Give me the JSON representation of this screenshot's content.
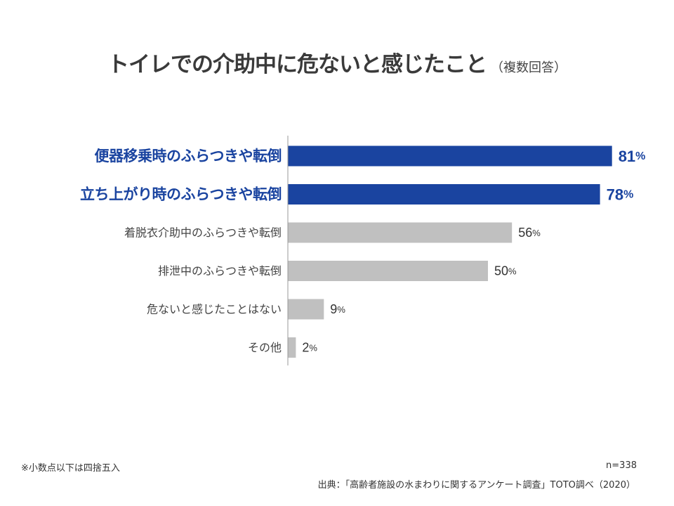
{
  "title": {
    "main": "トイレでの介助中に危ないと感じたこと",
    "sub": "（複数回答）"
  },
  "chart_data": {
    "type": "bar",
    "orientation": "horizontal",
    "categories": [
      "便器移乗時のふらつきや転倒",
      "立ち上がり時のふらつきや転倒",
      "着脱衣介助中のふらつきや転倒",
      "排泄中のふらつきや転倒",
      "危ないと感じたことはない",
      "その他"
    ],
    "values": [
      81,
      78,
      56,
      50,
      9,
      2
    ],
    "unit": "%",
    "highlighted": [
      true,
      true,
      false,
      false,
      false,
      false
    ],
    "xlim": [
      0,
      100
    ],
    "grid": false,
    "title": "トイレでの介助中に危ないと感じたこと",
    "colors": {
      "highlight": "#1a44a0",
      "normal": "#c0c0c0",
      "axis": "#999999",
      "normal_label": "#444444"
    }
  },
  "notes": {
    "footnote": "※小数点以下は四捨五入",
    "sample_size": "n=338",
    "source": "出典：「高齢者施設の水まわりに関するアンケート調査」TOTO調べ（2020）"
  }
}
